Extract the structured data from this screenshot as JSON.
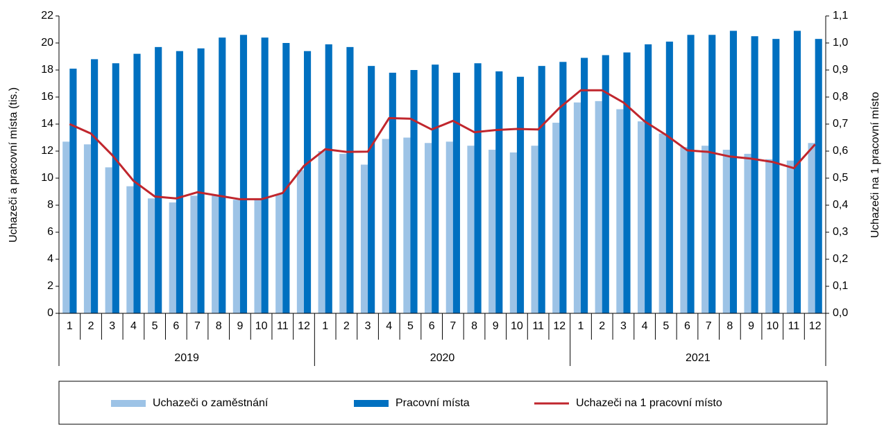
{
  "chart_data": {
    "type": "bar-line",
    "y_label": "Uchazeči a pracovní místa (tis.)",
    "y2_label": "Uchazeči na 1 pracovní místo",
    "categories": [
      "1",
      "2",
      "3",
      "4",
      "5",
      "6",
      "7",
      "8",
      "9",
      "10",
      "11",
      "12",
      "1",
      "2",
      "3",
      "4",
      "5",
      "6",
      "7",
      "8",
      "9",
      "10",
      "11",
      "12",
      "1",
      "2",
      "3",
      "4",
      "5",
      "6",
      "7",
      "8",
      "9",
      "10",
      "11",
      "12"
    ],
    "groups": [
      "2019",
      "2020",
      "2021"
    ],
    "ylim": [
      0,
      22
    ],
    "yticks": [
      0,
      2,
      4,
      6,
      8,
      10,
      12,
      14,
      16,
      18,
      20,
      22
    ],
    "y2lim": [
      0,
      1.1
    ],
    "y2ticks": [
      {
        "value": 0,
        "label": "0,0"
      },
      {
        "value": 0.1,
        "label": "0,1"
      },
      {
        "value": 0.2,
        "label": "0,2"
      },
      {
        "value": 0.3,
        "label": "0,3"
      },
      {
        "value": 0.4,
        "label": "0,4"
      },
      {
        "value": 0.5,
        "label": "0,5"
      },
      {
        "value": 0.6,
        "label": "0,6"
      },
      {
        "value": 0.7,
        "label": "0,7"
      },
      {
        "value": 0.8,
        "label": "0,8"
      },
      {
        "value": 0.9,
        "label": "0,9"
      },
      {
        "value": 1.0,
        "label": "1,0"
      },
      {
        "value": 1.1,
        "label": "1,1"
      }
    ],
    "series": [
      {
        "name": "Uchazeči o zaměstnání",
        "type": "bar",
        "color": "#9dc3e6",
        "values": [
          12.7,
          12.5,
          10.8,
          9.4,
          8.5,
          8.2,
          8.7,
          8.7,
          8.4,
          8.4,
          8.8,
          10.6,
          12.0,
          11.8,
          11.0,
          12.9,
          13.0,
          12.6,
          12.7,
          12.4,
          12.1,
          11.9,
          12.4,
          14.1,
          15.6,
          15.7,
          15.1,
          14.2,
          13.3,
          12.3,
          12.4,
          12.1,
          11.8,
          11.4,
          11.3,
          12.6
        ]
      },
      {
        "name": "Pracovní místa",
        "type": "bar",
        "color": "#0070c0",
        "values": [
          18.1,
          18.8,
          18.5,
          19.2,
          19.7,
          19.4,
          19.6,
          20.4,
          20.6,
          20.4,
          20.0,
          19.4,
          19.9,
          19.7,
          18.3,
          17.8,
          18.0,
          18.4,
          17.8,
          18.5,
          17.9,
          17.5,
          18.3,
          18.6,
          18.9,
          19.1,
          19.3,
          19.9,
          20.1,
          20.6,
          20.6,
          20.9,
          20.5,
          20.3,
          20.9,
          20.3
        ]
      },
      {
        "name": "Uchazeči na 1 pracovní místo",
        "type": "line",
        "axis": "y2",
        "color": "#c0262d",
        "values": [
          0.7,
          0.665,
          0.585,
          0.49,
          0.432,
          0.425,
          0.448,
          0.435,
          0.422,
          0.422,
          0.445,
          0.545,
          0.607,
          0.597,
          0.598,
          0.722,
          0.72,
          0.68,
          0.712,
          0.67,
          0.678,
          0.682,
          0.68,
          0.76,
          0.825,
          0.825,
          0.78,
          0.71,
          0.66,
          0.603,
          0.597,
          0.58,
          0.572,
          0.56,
          0.537,
          0.625
        ]
      }
    ]
  }
}
